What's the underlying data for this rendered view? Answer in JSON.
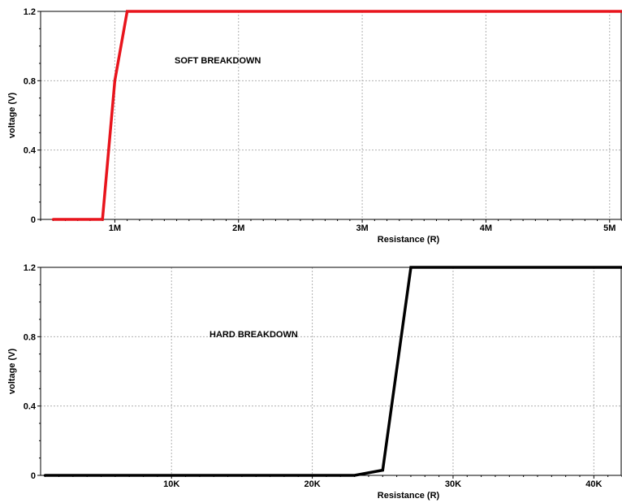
{
  "chart_data": [
    {
      "type": "line",
      "title": "",
      "xlabel": "Resistance (R)",
      "ylabel": "voltage (V)",
      "annotation": "SOFT BREAKDOWN",
      "xlim": [
        400000,
        5100000
      ],
      "ylim": [
        0,
        1.2
      ],
      "x_ticks": [
        1000000,
        2000000,
        3000000,
        4000000,
        5000000
      ],
      "x_tick_labels": [
        "1M",
        "2M",
        "3M",
        "4M",
        "5M"
      ],
      "y_ticks": [
        0,
        0.4,
        0.8,
        1.2
      ],
      "y_tick_labels": [
        "0",
        "0.4",
        "0.8",
        "1.2"
      ],
      "grid": true,
      "series": [
        {
          "color": "#e8141c",
          "x": [
            500000,
            900000,
            1000000,
            1100000,
            5100000
          ],
          "y": [
            0,
            0,
            0.8,
            1.2,
            1.2
          ]
        }
      ]
    },
    {
      "type": "line",
      "title": "",
      "xlabel": "Resistance (R)",
      "ylabel": "voltage (V)",
      "annotation": "HARD BREAKDOWN",
      "xlim": [
        700,
        42000
      ],
      "ylim": [
        0,
        1.2
      ],
      "x_ticks": [
        10000,
        20000,
        30000,
        40000
      ],
      "x_tick_labels": [
        "10K",
        "20K",
        "30K",
        "40K"
      ],
      "y_ticks": [
        0,
        0.4,
        0.8,
        1.2
      ],
      "y_tick_labels": [
        "0",
        "0.4",
        "0.8",
        "1.2"
      ],
      "grid": true,
      "series": [
        {
          "color": "#000000",
          "x": [
            1000,
            23000,
            25000,
            27000,
            30000,
            42000
          ],
          "y": [
            0,
            0,
            0.03,
            1.2,
            1.2,
            1.2
          ]
        }
      ]
    }
  ]
}
